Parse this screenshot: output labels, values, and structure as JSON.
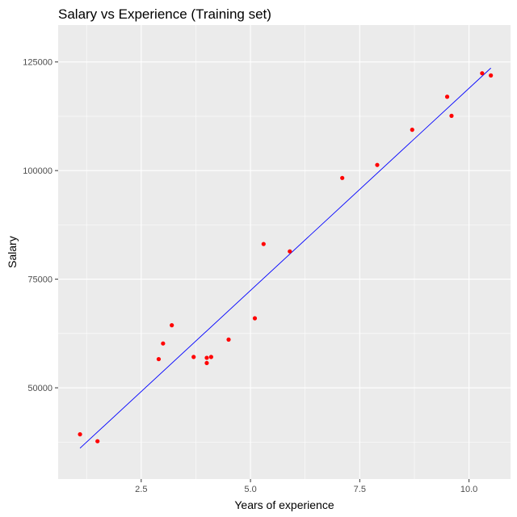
{
  "chart_data": {
    "type": "scatter",
    "title": "Salary vs Experience (Training set)",
    "xlabel": "Years of experience",
    "ylabel": "Salary",
    "xlim": [
      0.6,
      10.95
    ],
    "ylim": [
      29000,
      133500
    ],
    "x_ticks": [
      {
        "value": 2.5,
        "label": "2.5"
      },
      {
        "value": 5.0,
        "label": "5.0"
      },
      {
        "value": 7.5,
        "label": "7.5"
      },
      {
        "value": 10.0,
        "label": "10.0"
      }
    ],
    "y_ticks": [
      {
        "value": 50000,
        "label": "50000"
      },
      {
        "value": 75000,
        "label": "75000"
      },
      {
        "value": 100000,
        "label": "100000"
      },
      {
        "value": 125000,
        "label": "125000"
      }
    ],
    "grid": true,
    "points": {
      "color": "#ff0000",
      "x": [
        1.1,
        1.5,
        2.9,
        3.0,
        3.2,
        3.7,
        4.0,
        4.0,
        4.1,
        4.5,
        5.1,
        5.3,
        5.9,
        7.1,
        7.9,
        8.7,
        9.5,
        9.6,
        10.3,
        10.5
      ],
      "y": [
        39300,
        37700,
        56600,
        60200,
        64400,
        57100,
        55700,
        56900,
        57100,
        61100,
        66000,
        83100,
        81400,
        98300,
        101300,
        109400,
        117000,
        112600,
        122400,
        121900
      ]
    },
    "regression_line": {
      "color": "#0000ff",
      "x": [
        1.1,
        10.5
      ],
      "y": [
        36100,
        123600
      ]
    },
    "colors": {
      "panel_background": "#ebebeb",
      "grid_line": "#ffffff"
    }
  }
}
